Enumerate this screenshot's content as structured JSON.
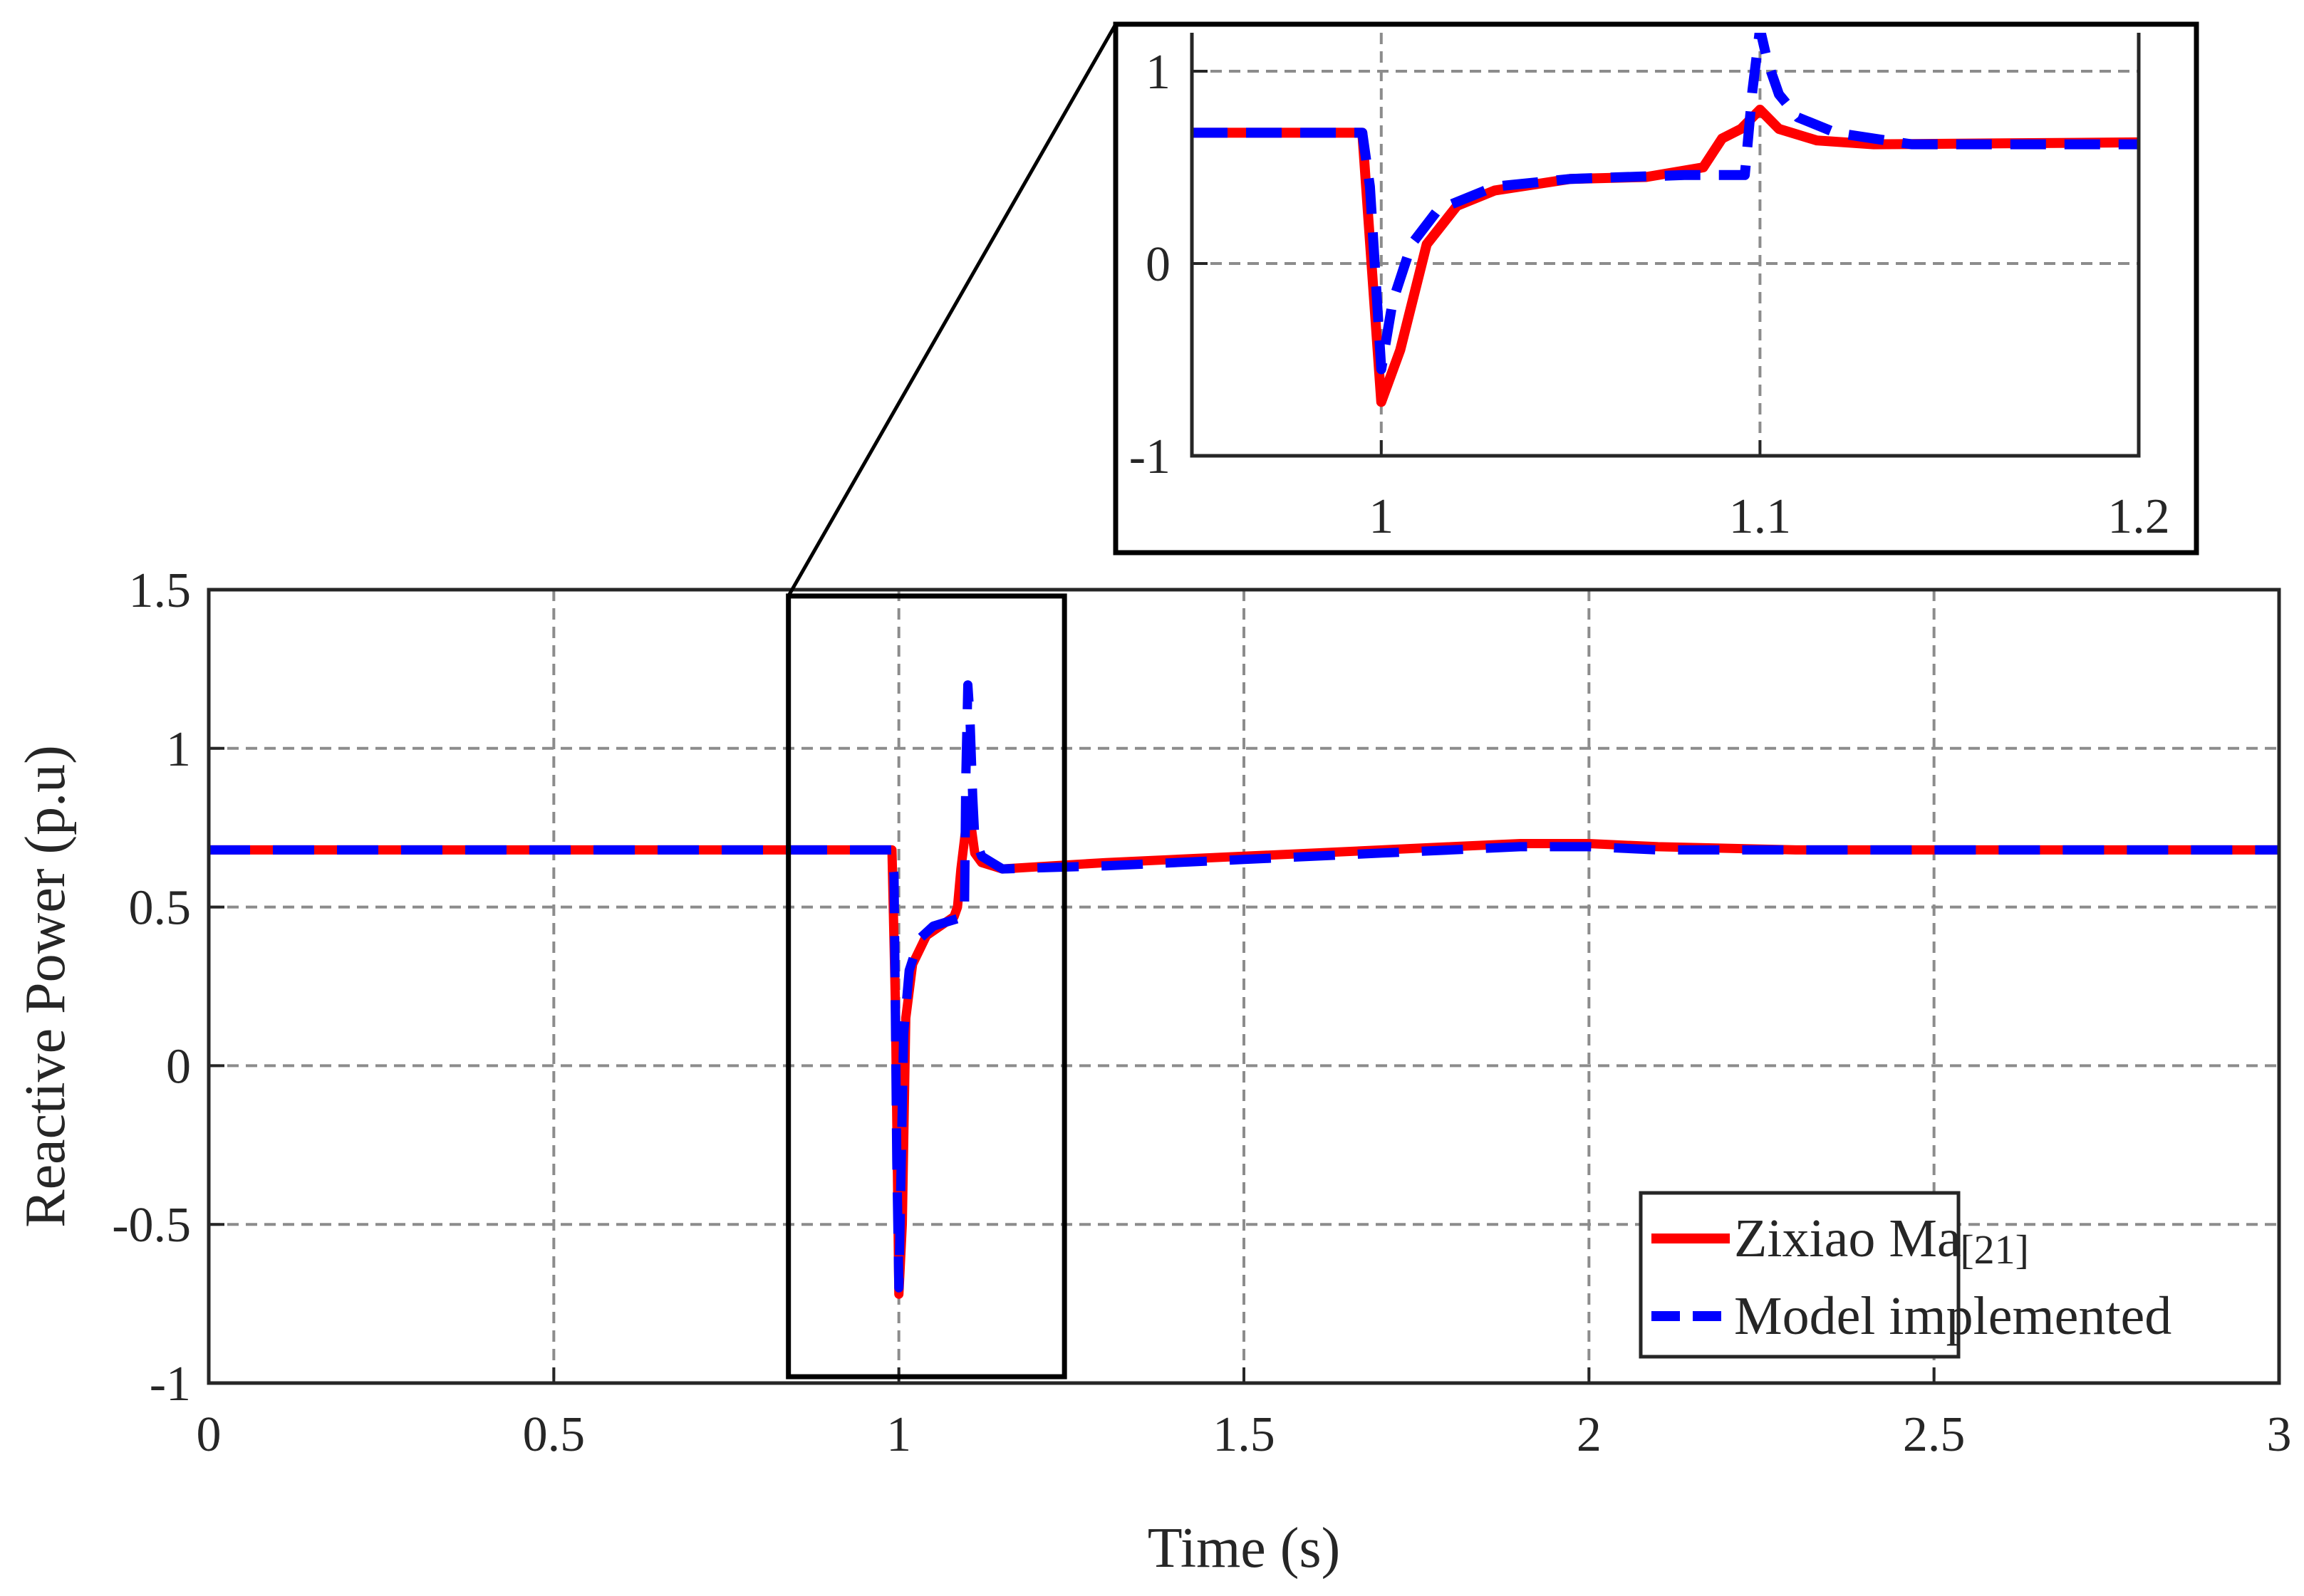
{
  "chart_data": [
    {
      "id": "main",
      "type": "line",
      "title": "",
      "xlabel": "Time (s)",
      "ylabel": "Reactive Power (p.u)",
      "xlim": [
        0,
        3
      ],
      "ylim": [
        -1,
        1.5
      ],
      "xticks": [
        0,
        0.5,
        1,
        1.5,
        2,
        2.5,
        3
      ],
      "xtick_labels": [
        "0",
        "0.5",
        "1",
        "1.5",
        "2",
        "2.5",
        "3"
      ],
      "yticks": [
        -1,
        -0.5,
        0,
        0.5,
        1,
        1.5
      ],
      "ytick_labels": [
        "-1",
        "-0.5",
        "0",
        "0.5",
        "1",
        "1.5"
      ],
      "grid": true,
      "legend": {
        "position": "bottom-right",
        "entries": [
          {
            "series": "Zixiao Ma",
            "ref": "[21]"
          },
          {
            "series": "Model implemented",
            "ref": ""
          }
        ]
      },
      "highlight_box": {
        "x": [
          0.84,
          1.24
        ],
        "y": [
          -0.98,
          1.48
        ]
      },
      "series": [
        {
          "name": "Zixiao Ma",
          "color": "#ff0000",
          "style": "solid",
          "x": [
            0,
            0.99,
            0.995,
            1.0,
            1.005,
            1.01,
            1.02,
            1.04,
            1.06,
            1.08,
            1.085,
            1.09,
            1.1,
            1.105,
            1.11,
            1.12,
            1.15,
            1.3,
            1.5,
            1.7,
            1.8,
            1.9,
            1.95,
            2.0,
            2.1,
            2.3,
            2.6,
            3.0
          ],
          "y": [
            0.68,
            0.68,
            0.2,
            -0.72,
            -0.5,
            0.15,
            0.32,
            0.41,
            0.44,
            0.47,
            0.5,
            0.62,
            0.8,
            0.75,
            0.67,
            0.64,
            0.62,
            0.64,
            0.66,
            0.68,
            0.69,
            0.7,
            0.7,
            0.7,
            0.69,
            0.68,
            0.68,
            0.68
          ]
        },
        {
          "name": "Model implemented",
          "color": "#0000ff",
          "style": "dashed",
          "x": [
            0,
            0.99,
            0.993,
            0.997,
            1.0,
            1.003,
            1.007,
            1.015,
            1.03,
            1.05,
            1.08,
            1.095,
            1.097,
            1.1,
            1.103,
            1.107,
            1.11,
            1.12,
            1.15,
            1.3,
            1.5,
            1.7,
            1.8,
            1.9,
            2.0,
            2.1,
            2.3,
            2.6,
            3.0
          ],
          "y": [
            0.68,
            0.68,
            0.6,
            -0.3,
            -0.7,
            -0.35,
            0.1,
            0.3,
            0.4,
            0.44,
            0.46,
            0.47,
            0.9,
            1.2,
            1.1,
            0.85,
            0.72,
            0.66,
            0.62,
            0.63,
            0.65,
            0.67,
            0.68,
            0.69,
            0.69,
            0.68,
            0.68,
            0.68,
            0.68
          ]
        }
      ]
    },
    {
      "id": "inset",
      "type": "line",
      "title": "",
      "xlabel": "",
      "ylabel": "",
      "xlim": [
        0.95,
        1.2
      ],
      "ylim": [
        -1,
        1.2
      ],
      "xticks": [
        1,
        1.1,
        1.2
      ],
      "xtick_labels": [
        "1",
        "1.1",
        "1.2"
      ],
      "yticks": [
        -1,
        0,
        1
      ],
      "ytick_labels": [
        "-1",
        "0",
        "1"
      ],
      "grid": true,
      "series": [
        {
          "name": "Zixiao Ma",
          "color": "#ff0000",
          "style": "solid",
          "x": [
            0.95,
            0.995,
            1.0,
            1.005,
            1.012,
            1.02,
            1.03,
            1.05,
            1.07,
            1.085,
            1.09,
            1.095,
            1.1,
            1.105,
            1.115,
            1.13,
            1.2
          ],
          "y": [
            0.68,
            0.68,
            -0.72,
            -0.45,
            0.1,
            0.3,
            0.38,
            0.44,
            0.45,
            0.5,
            0.65,
            0.7,
            0.8,
            0.7,
            0.64,
            0.62,
            0.63
          ]
        },
        {
          "name": "Model implemented",
          "color": "#0000ff",
          "style": "dashed",
          "x": [
            0.95,
            0.995,
            0.997,
            1.0,
            1.003,
            1.008,
            1.015,
            1.03,
            1.05,
            1.08,
            1.096,
            1.098,
            1.1,
            1.102,
            1.105,
            1.11,
            1.12,
            1.14,
            1.2
          ],
          "y": [
            0.68,
            0.68,
            0.4,
            -0.55,
            -0.2,
            0.1,
            0.28,
            0.4,
            0.44,
            0.46,
            0.46,
            0.9,
            1.22,
            1.05,
            0.88,
            0.76,
            0.68,
            0.62,
            0.62
          ]
        }
      ]
    }
  ]
}
